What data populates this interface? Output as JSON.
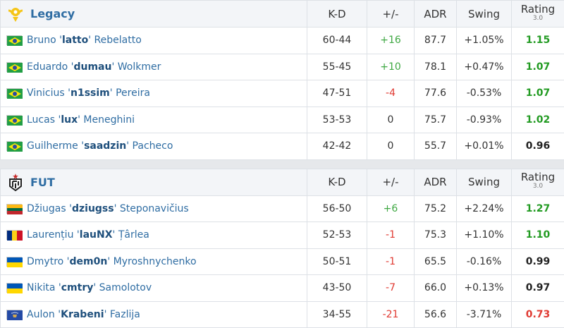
{
  "columns": {
    "kd": "K-D",
    "pm": "+/-",
    "adr": "ADR",
    "swing": "Swing",
    "rating": "Rating",
    "rating_sub": "3.0"
  },
  "teams": [
    {
      "name": "Legacy",
      "logo": "legacy-logo",
      "players": [
        {
          "flag": "brazil",
          "first": "Bruno",
          "nick": "latto",
          "last": "Rebelatto",
          "kd": "60-44",
          "pm": "+16",
          "adr": "87.7",
          "swing": "+1.05%",
          "rating": "1.15"
        },
        {
          "flag": "brazil",
          "first": "Eduardo",
          "nick": "dumau",
          "last": "Wolkmer",
          "kd": "55-45",
          "pm": "+10",
          "adr": "78.1",
          "swing": "+0.47%",
          "rating": "1.07"
        },
        {
          "flag": "brazil",
          "first": "Vinicius",
          "nick": "n1ssim",
          "last": "Pereira",
          "kd": "47-51",
          "pm": "-4",
          "adr": "77.6",
          "swing": "-0.53%",
          "rating": "1.07"
        },
        {
          "flag": "brazil",
          "first": "Lucas",
          "nick": "lux",
          "last": "Meneghini",
          "kd": "53-53",
          "pm": "0",
          "adr": "75.7",
          "swing": "-0.93%",
          "rating": "1.02"
        },
        {
          "flag": "brazil",
          "first": "Guilherme",
          "nick": "saadzin",
          "last": "Pacheco",
          "kd": "42-42",
          "pm": "0",
          "adr": "55.7",
          "swing": "+0.01%",
          "rating": "0.96"
        }
      ]
    },
    {
      "name": "FUT",
      "logo": "fut-logo",
      "players": [
        {
          "flag": "lithuania",
          "first": "Džiugas",
          "nick": "dziugss",
          "last": "Steponavičius",
          "kd": "56-50",
          "pm": "+6",
          "adr": "75.2",
          "swing": "+2.24%",
          "rating": "1.27"
        },
        {
          "flag": "romania",
          "first": "Laurențiu",
          "nick": "lauNX",
          "last": "Țârlea",
          "kd": "52-53",
          "pm": "-1",
          "adr": "75.3",
          "swing": "+1.10%",
          "rating": "1.10"
        },
        {
          "flag": "ukraine",
          "first": "Dmytro",
          "nick": "dem0n",
          "last": "Myroshnychenko",
          "kd": "50-51",
          "pm": "-1",
          "adr": "65.5",
          "swing": "-0.16%",
          "rating": "0.99"
        },
        {
          "flag": "ukraine",
          "first": "Nikita",
          "nick": "cmtry",
          "last": "Samolotov",
          "kd": "43-50",
          "pm": "-7",
          "adr": "66.0",
          "swing": "+0.13%",
          "rating": "0.97"
        },
        {
          "flag": "kosovo",
          "first": "Aulon",
          "nick": "Krabeni",
          "last": "Fazlija",
          "kd": "34-55",
          "pm": "-21",
          "adr": "56.6",
          "swing": "-3.71%",
          "rating": "0.73"
        }
      ]
    }
  ]
}
